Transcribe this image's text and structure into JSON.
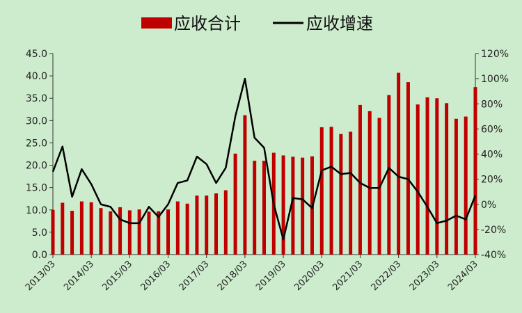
{
  "chart_data": {
    "type": "bar+line",
    "title": "",
    "legend": {
      "placement": "top",
      "items": [
        {
          "name": "应收合计",
          "kind": "bar",
          "color": "#c00000"
        },
        {
          "name": "应收增速",
          "kind": "line",
          "color": "#000000"
        }
      ]
    },
    "y_left": {
      "ylim": [
        0,
        45
      ],
      "ticks": [
        "0.0",
        "5.0",
        "10.0",
        "15.0",
        "20.0",
        "25.0",
        "30.0",
        "35.0",
        "40.0",
        "45.0"
      ]
    },
    "y_right": {
      "ylim": [
        -40,
        120
      ],
      "unit": "%",
      "ticks": [
        "-40%",
        "-20%",
        "0%",
        "20%",
        "40%",
        "60%",
        "80%",
        "100%",
        "120%"
      ]
    },
    "x_tick_labels": [
      "2013/03",
      "2014/03",
      "2015/03",
      "2016/03",
      "2017/03",
      "2018/03",
      "2019/03",
      "2020/03",
      "2021/03",
      "2022/03",
      "2023/03",
      "2024/03"
    ],
    "grid": false,
    "series": [
      {
        "name": "应收合计",
        "type": "bar",
        "axis": "left",
        "values": [
          10.0,
          11.6,
          9.8,
          11.9,
          11.7,
          10.4,
          9.7,
          10.6,
          9.9,
          10.1,
          9.6,
          9.7,
          10.1,
          11.9,
          11.4,
          13.2,
          13.2,
          13.7,
          14.4,
          22.6,
          31.2,
          21.0,
          21.0,
          22.8,
          22.2,
          21.9,
          21.7,
          22.0,
          28.5,
          28.6,
          27.0,
          27.5,
          33.5,
          32.1,
          30.6,
          35.7,
          40.7,
          38.6,
          33.6,
          35.2,
          35.0,
          33.9,
          30.4,
          30.9,
          37.5
        ]
      },
      {
        "name": "应收增速",
        "type": "line",
        "axis": "right",
        "values": [
          26,
          46,
          6,
          28,
          16,
          0,
          -2,
          -12,
          -15,
          -15,
          -2,
          -10,
          0,
          17,
          19,
          38,
          32,
          17,
          29,
          70,
          100,
          53,
          45,
          0,
          -28,
          5,
          4,
          -3,
          27,
          30,
          24,
          25,
          17,
          13,
          13,
          29,
          22,
          20,
          10,
          -2,
          -15,
          -13,
          -9,
          -12,
          7
        ]
      }
    ]
  }
}
